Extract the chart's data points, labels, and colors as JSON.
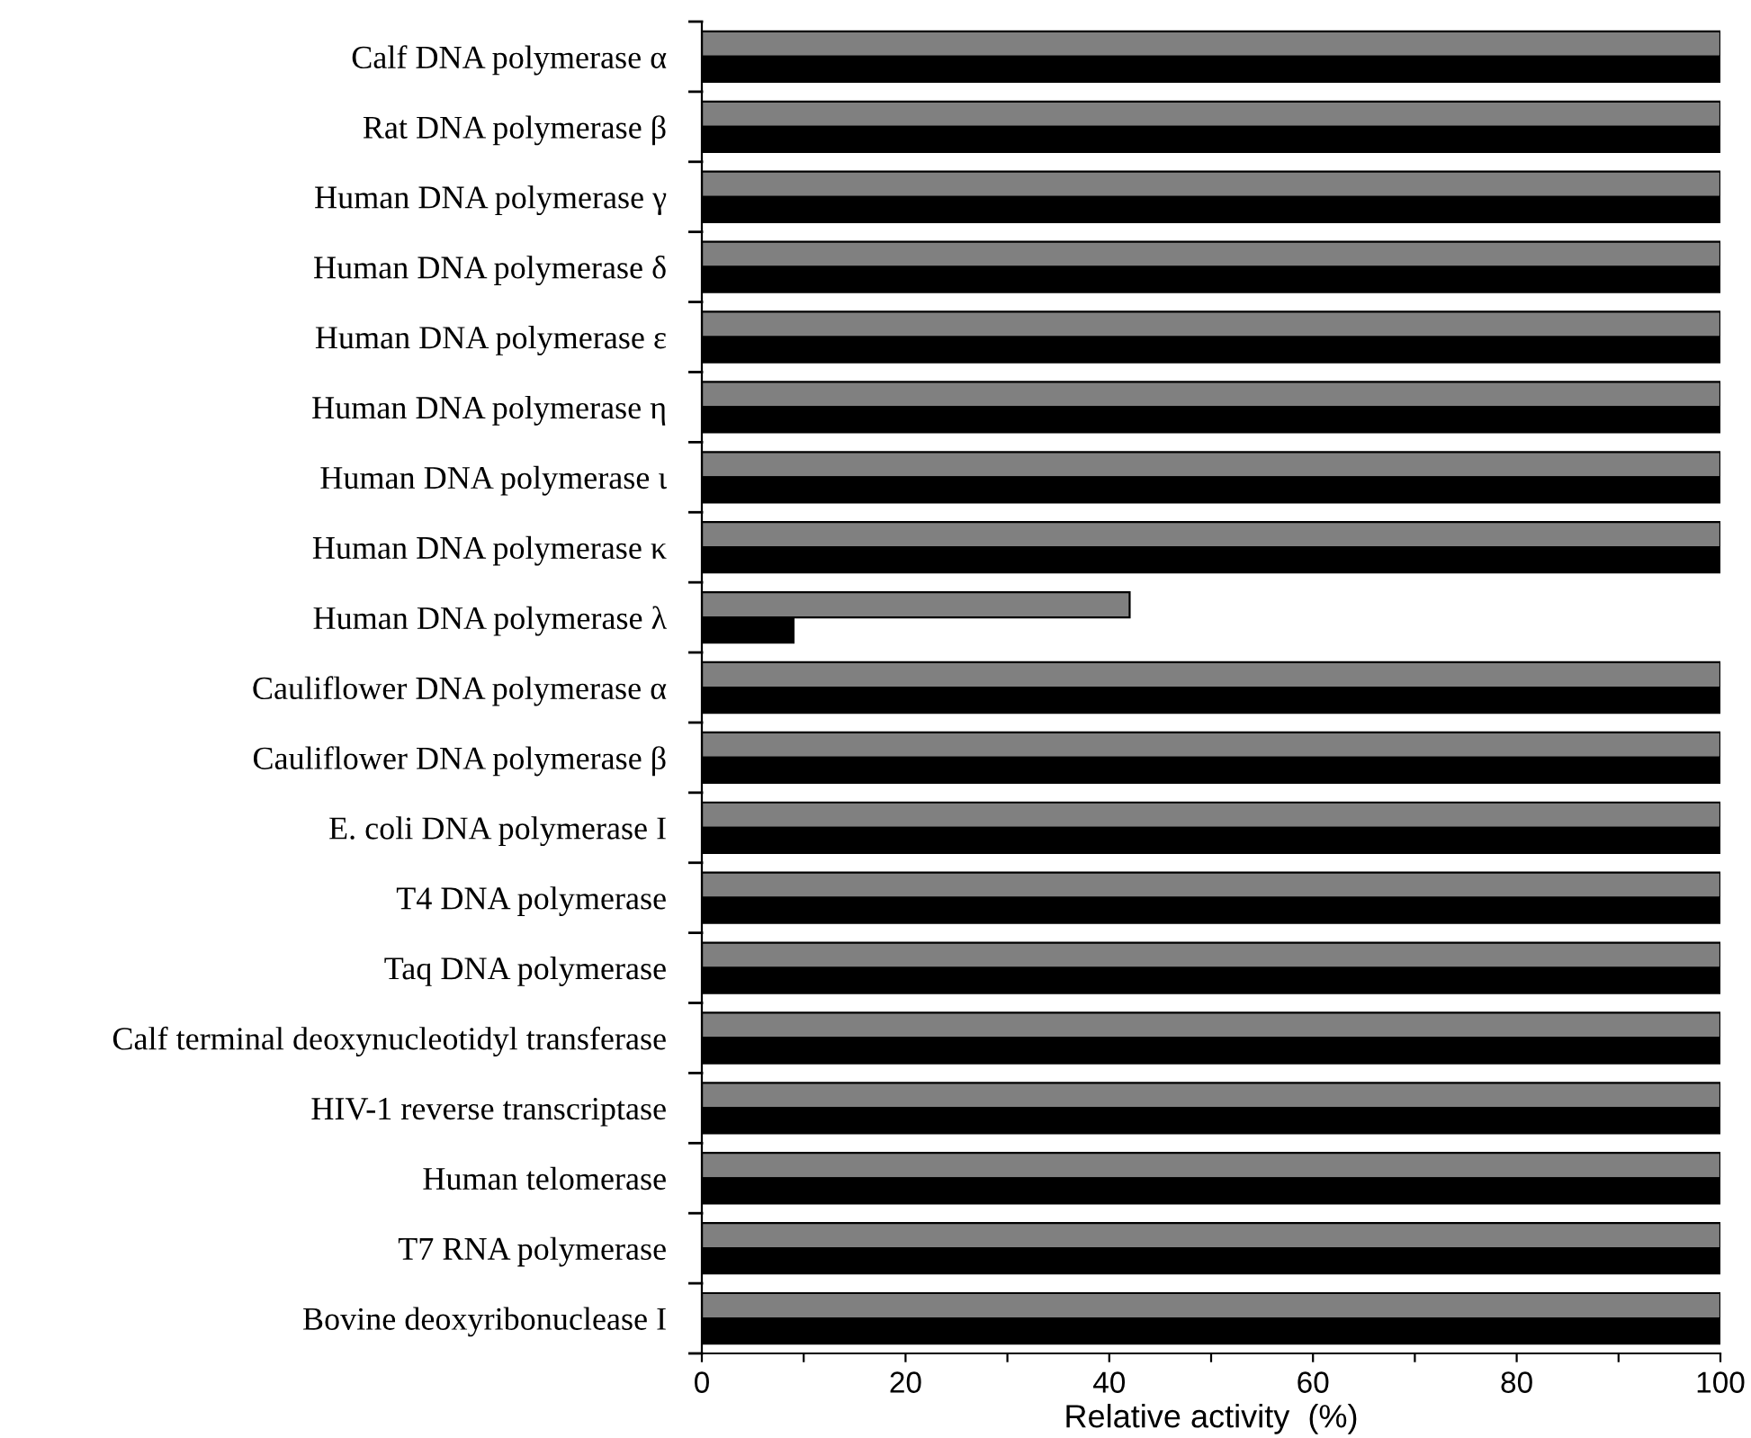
{
  "chart_data": {
    "type": "bar",
    "orientation": "horizontal",
    "xlabel": "Relative activity  (%)",
    "categories": [
      "Calf DNA polymerase α",
      "Rat DNA polymerase β",
      "Human DNA polymerase γ",
      "Human DNA polymerase δ",
      "Human DNA polymerase ε",
      "Human DNA polymerase η",
      "Human DNA polymerase ι",
      "Human DNA polymerase κ",
      "Human DNA polymerase λ",
      "Cauliflower DNA polymerase α",
      "Cauliflower DNA polymerase β",
      "E. coli DNA polymerase I",
      "T4 DNA polymerase",
      "Taq DNA polymerase",
      "Calf terminal deoxynucleotidyl transferase",
      "HIV-1 reverse transcriptase",
      "Human telomerase",
      "T7 RNA polymerase",
      "Bovine deoxyribonuclease I"
    ],
    "series": [
      {
        "color": "#808080",
        "values": [
          100,
          100,
          100,
          100,
          100,
          100,
          100,
          100,
          42,
          100,
          100,
          100,
          100,
          100,
          100,
          100,
          100,
          100,
          100
        ]
      },
      {
        "color": "#000000",
        "values": [
          100,
          100,
          100,
          100,
          100,
          100,
          100,
          100,
          9,
          100,
          100,
          100,
          100,
          100,
          100,
          100,
          100,
          100,
          100
        ]
      }
    ],
    "xlim": [
      0,
      100
    ],
    "xticks": [
      0,
      {
        "value": 10,
        "label": null
      },
      20,
      {
        "value": 30,
        "label": null
      },
      40,
      {
        "value": 50,
        "label": null
      },
      60,
      {
        "value": 70,
        "label": null
      },
      80,
      {
        "value": 90,
        "label": null
      },
      100
    ],
    "grid": false,
    "legend": false
  }
}
